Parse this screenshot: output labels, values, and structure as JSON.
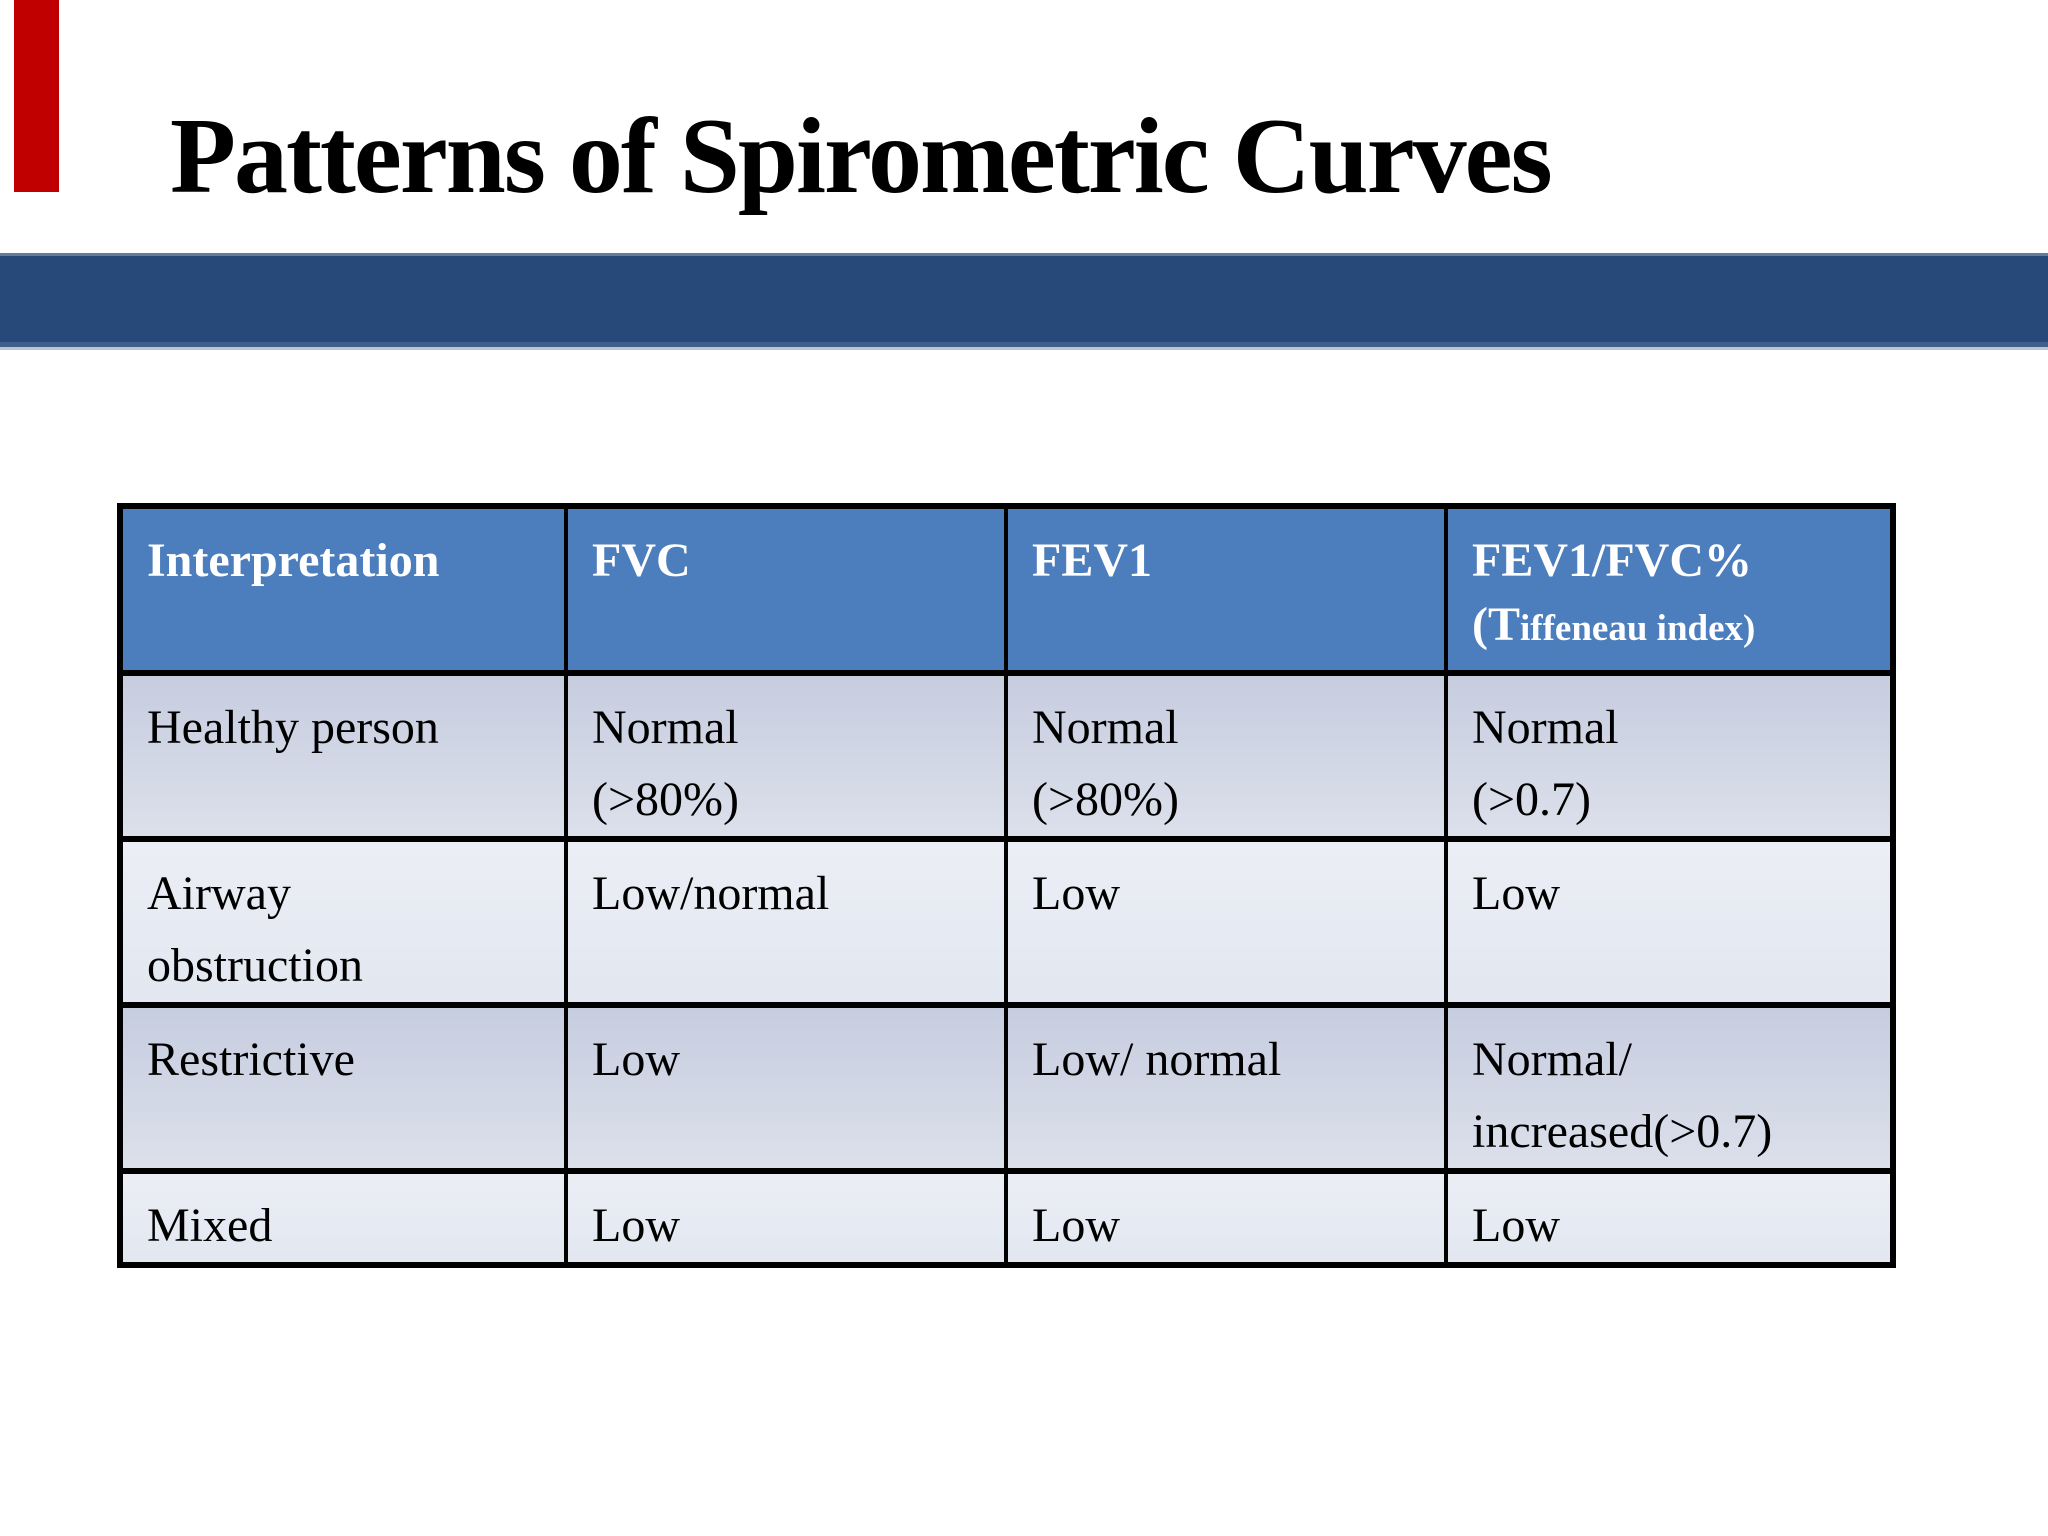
{
  "slide": {
    "title": "Patterns of Spirometric Curves",
    "colors": {
      "accent_bar": "#c00000",
      "band": "#27497a",
      "header_bg": "#4c7dbc",
      "header_text": "#ffffff",
      "row_odd": "#cdd3e4",
      "row_even": "#e9ecf3",
      "border": "#000000"
    }
  },
  "table": {
    "col_keys": [
      "interpretation",
      "fvc",
      "fev1",
      "fev1-fvc-percent"
    ],
    "headers": [
      {
        "lines": [
          "Interpretation"
        ]
      },
      {
        "lines": [
          "FVC"
        ]
      },
      {
        "lines": [
          "FEV1"
        ]
      },
      {
        "lines": [
          "FEV1/FVC%"
        ],
        "line2_big": "(T",
        "line2_small": "iffeneau index)"
      }
    ],
    "rows": [
      {
        "cells": [
          [
            "Healthy person"
          ],
          [
            "Normal",
            "(>80%)"
          ],
          [
            "Normal",
            "(>80%)"
          ],
          [
            "Normal",
            "(>0.7)"
          ]
        ]
      },
      {
        "cells": [
          [
            "Airway",
            "obstruction"
          ],
          [
            "Low/normal"
          ],
          [
            "Low"
          ],
          [
            "Low"
          ]
        ]
      },
      {
        "cells": [
          [
            "Restrictive"
          ],
          [
            "Low"
          ],
          [
            "Low/ normal"
          ],
          [
            "Normal/",
            "increased(>0.7)"
          ]
        ]
      },
      {
        "cells": [
          [
            "Mixed"
          ],
          [
            "Low"
          ],
          [
            "Low"
          ],
          [
            "Low"
          ]
        ]
      }
    ]
  }
}
